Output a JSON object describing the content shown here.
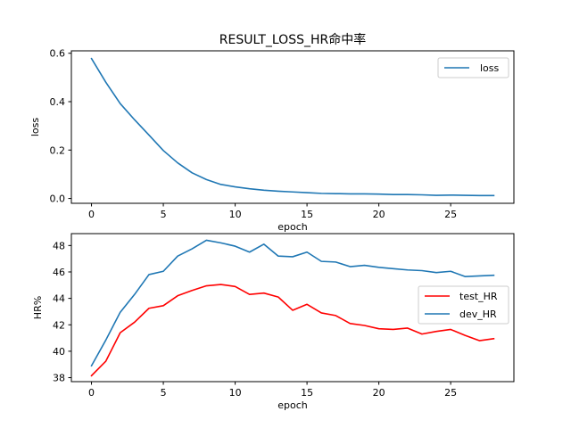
{
  "chart_data": [
    {
      "type": "line",
      "title": "RESULT_LOSS_HR命中率",
      "xlabel": "epoch",
      "ylabel": "loss",
      "xlim": [
        -1.4,
        29.4
      ],
      "ylim": [
        -0.02,
        0.61
      ],
      "xticks": [
        0,
        5,
        10,
        15,
        20,
        25
      ],
      "yticks": [
        0.0,
        0.2,
        0.4,
        0.6
      ],
      "xtick_labels": [
        "0",
        "5",
        "10",
        "15",
        "20",
        "25"
      ],
      "ytick_labels": [
        "0.0",
        "0.2",
        "0.4",
        "0.6"
      ],
      "grid": false,
      "legend_position": "top-right",
      "x": [
        0,
        1,
        2,
        3,
        4,
        5,
        6,
        7,
        8,
        9,
        10,
        11,
        12,
        13,
        14,
        15,
        16,
        17,
        18,
        19,
        20,
        21,
        22,
        23,
        24,
        25,
        26,
        27,
        28
      ],
      "series": [
        {
          "name": "loss",
          "color": "#1f77b4",
          "values": [
            0.578,
            0.48,
            0.392,
            0.325,
            0.262,
            0.198,
            0.147,
            0.106,
            0.078,
            0.058,
            0.048,
            0.04,
            0.034,
            0.03,
            0.027,
            0.024,
            0.021,
            0.02,
            0.019,
            0.019,
            0.018,
            0.016,
            0.016,
            0.015,
            0.013,
            0.014,
            0.013,
            0.012,
            0.012
          ]
        }
      ]
    },
    {
      "type": "line",
      "xlabel": "epoch",
      "ylabel": "HR%",
      "xlim": [
        -1.4,
        29.4
      ],
      "ylim": [
        37.7,
        48.9
      ],
      "xticks": [
        0,
        5,
        10,
        15,
        20,
        25
      ],
      "yticks": [
        38,
        40,
        42,
        44,
        46,
        48
      ],
      "xtick_labels": [
        "0",
        "5",
        "10",
        "15",
        "20",
        "25"
      ],
      "ytick_labels": [
        "38",
        "40",
        "42",
        "44",
        "46",
        "48"
      ],
      "grid": false,
      "legend_position": "center-right",
      "x": [
        0,
        1,
        2,
        3,
        4,
        5,
        6,
        7,
        8,
        9,
        10,
        11,
        12,
        13,
        14,
        15,
        16,
        17,
        18,
        19,
        20,
        21,
        22,
        23,
        24,
        25,
        26,
        27,
        28
      ],
      "series": [
        {
          "name": "test_HR",
          "color": "#ff0000",
          "values": [
            38.15,
            39.25,
            41.4,
            42.2,
            43.25,
            43.45,
            44.2,
            44.6,
            44.95,
            45.05,
            44.9,
            44.3,
            44.4,
            44.1,
            43.1,
            43.55,
            42.9,
            42.7,
            42.1,
            41.95,
            41.7,
            41.65,
            41.75,
            41.3,
            41.5,
            41.65,
            41.2,
            40.8,
            40.95
          ]
        },
        {
          "name": "dev_HR",
          "color": "#1f77b4",
          "values": [
            38.9,
            40.85,
            42.95,
            44.3,
            45.8,
            46.05,
            47.2,
            47.75,
            48.4,
            48.2,
            47.95,
            47.5,
            48.1,
            47.2,
            47.15,
            47.5,
            46.8,
            46.75,
            46.4,
            46.5,
            46.35,
            46.25,
            46.15,
            46.1,
            45.95,
            46.05,
            45.65,
            45.7,
            45.75
          ]
        }
      ]
    }
  ]
}
